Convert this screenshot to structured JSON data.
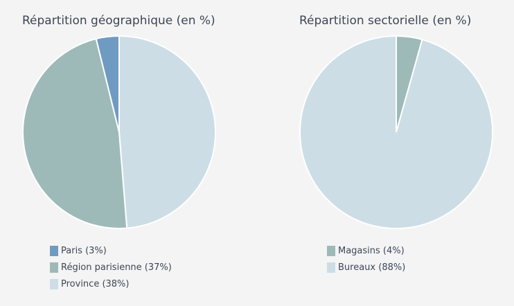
{
  "chart_data": [
    {
      "type": "pie",
      "title": "Répartition géographique (en %)",
      "slices": [
        {
          "label": "Province (38%)",
          "name": "Province",
          "value": 38,
          "color": "#ccdde6"
        },
        {
          "label": "Région parisienne (37%)",
          "name": "Région parisienne",
          "value": 37,
          "color": "#9dbab8"
        },
        {
          "label": "Paris (3%)",
          "name": "Paris",
          "value": 3,
          "color": "#6f9bc2"
        }
      ],
      "legend_order": [
        2,
        1,
        0
      ],
      "legend_placement": "bottom-left"
    },
    {
      "type": "pie",
      "title": "Répartition sectorielle (en %)",
      "slices": [
        {
          "label": "Magasins (4%)",
          "name": "Magasins",
          "value": 4,
          "color": "#9dbab8"
        },
        {
          "label": "Bureaux (88%)",
          "name": "Bureaux",
          "value": 88,
          "color": "#ccdde6"
        }
      ],
      "legend_order": [
        0,
        1
      ],
      "legend_placement": "bottom-left"
    }
  ]
}
